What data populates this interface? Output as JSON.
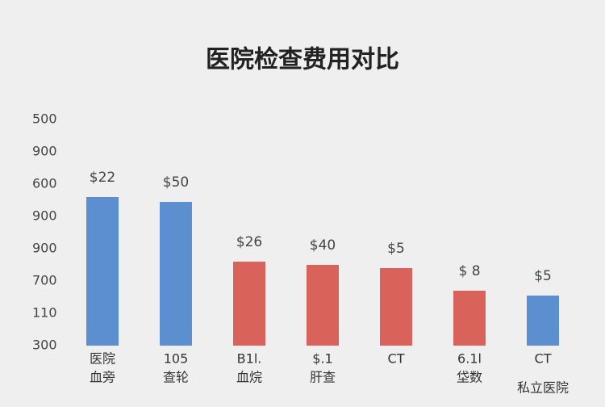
{
  "chart_data": {
    "type": "bar",
    "title": "医院检查费用对比",
    "categories": [
      [
        "医院",
        "血旁"
      ],
      [
        "105",
        "查轮"
      ],
      [
        "B1l.",
        "血烷"
      ],
      [
        "$.1",
        "肝查"
      ],
      [
        "CT"
      ],
      [
        "6.1l",
        "垈数"
      ],
      [
        "CT",
        "私立医院"
      ]
    ],
    "values": [
      4.6,
      4.45,
      2.6,
      2.5,
      2.4,
      1.7,
      1.55
    ],
    "colors": [
      "#5b8fd0",
      "#5b8fd0",
      "#d9625a",
      "#d9625a",
      "#d9625a",
      "#d9625a",
      "#5b8fd0"
    ],
    "annotations": [
      "$22",
      "$50",
      "$26",
      "$40",
      "$5",
      "$ 8",
      "$5"
    ],
    "ylim": [
      0,
      7
    ],
    "yticks": [
      {
        "value": 0,
        "label": "300"
      },
      {
        "value": 1,
        "label": "110"
      },
      {
        "value": 2,
        "label": "700"
      },
      {
        "value": 3,
        "label": "900"
      },
      {
        "value": 4,
        "label": "900"
      },
      {
        "value": 5,
        "label": "600"
      },
      {
        "value": 6,
        "label": "900"
      },
      {
        "value": 7,
        "label": "500"
      }
    ]
  }
}
